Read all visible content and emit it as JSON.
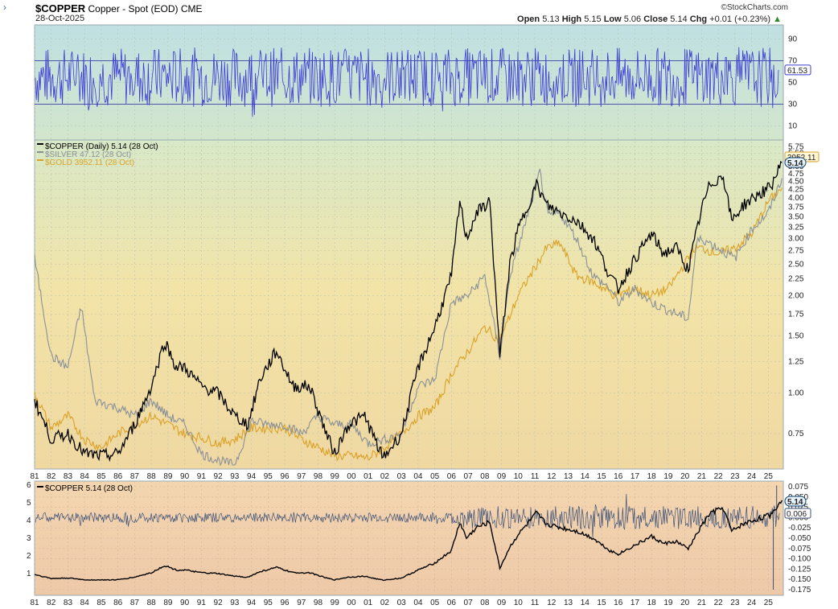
{
  "header": {
    "symbol": "$COPPER",
    "name": "Copper - Spot (EOD)",
    "exchange": "CME",
    "date": "28-Oct-2025",
    "brand": "©StockCharts.com",
    "ohlc": {
      "open_label": "Open",
      "open": "5.13",
      "high_label": "High",
      "high": "5.15",
      "low_label": "Low",
      "low": "5.06",
      "close_label": "Close",
      "close": "5.14",
      "chg_label": "Chg",
      "chg": "+0.01 (+0.23%)"
    },
    "up_arrow": "▲",
    "expander_icon": "›"
  },
  "colors": {
    "copper": "#000000",
    "silver": "#8a9098",
    "gold": "#d9a227",
    "rsi": "#3b3bd6",
    "roc": "#3c5078"
  },
  "chart_data": [
    {
      "type": "line",
      "panel": "rsi",
      "x_start": "1981",
      "x_end": "2025-10-28",
      "ylim": [
        0,
        100
      ],
      "yticks": [
        "90",
        "70",
        "50",
        "30",
        "10"
      ],
      "reference_lines": [
        70,
        30
      ],
      "last_value": "61.53",
      "series": [
        {
          "values_summary": "oscillates mostly between 25 and 80"
        }
      ]
    },
    {
      "type": "line",
      "panel": "price",
      "log_scale": true,
      "ylim": [
        0.6,
        5.8
      ],
      "yticks": [
        "5.75",
        "5.50",
        "5.25",
        "5.00",
        "4.75",
        "4.50",
        "4.25",
        "4.00",
        "3.75",
        "3.50",
        "3.25",
        "3.00",
        "2.75",
        "2.50",
        "2.25",
        "2.00",
        "1.75",
        "1.50",
        "1.25",
        "1.00",
        "0.75"
      ],
      "xticks": [
        "81",
        "82",
        "83",
        "84",
        "85",
        "86",
        "87",
        "88",
        "89",
        "90",
        "91",
        "92",
        "93",
        "94",
        "95",
        "96",
        "97",
        "98",
        "99",
        "00",
        "01",
        "02",
        "03",
        "04",
        "05",
        "06",
        "07",
        "08",
        "09",
        "10",
        "11",
        "12",
        "13",
        "14",
        "15",
        "16",
        "17",
        "18",
        "19",
        "20",
        "21",
        "22",
        "23",
        "24",
        "25"
      ],
      "legend": [
        {
          "label": "$COPPER (Daily) 5.14 (28 Oct)"
        },
        {
          "label": "$SILVER 47.12 (28 Oct)"
        },
        {
          "label": "$GOLD 3952.11 (28 Oct)"
        }
      ],
      "last_labels": [
        "3952.11",
        "5.14"
      ],
      "series": [
        {
          "name": "$COPPER",
          "x": [
            1981,
            1982,
            1983,
            1984,
            1985,
            1986,
            1987,
            1988,
            1988.8,
            1989.5,
            1990,
            1991,
            1992,
            1993,
            1993.8,
            1994.5,
            1995.5,
            1996.5,
            1997.5,
            1998.5,
            1999,
            1999.8,
            2000.8,
            2001.5,
            2001.9,
            2003,
            2004,
            2005,
            2006,
            2006.5,
            2006.9,
            2007.5,
            2008.3,
            2008.9,
            2009.5,
            2010,
            2011.1,
            2011.7,
            2012.5,
            2013.5,
            2014.5,
            2015.5,
            2016,
            2017,
            2018,
            2018.7,
            2019.5,
            2020.2,
            2021,
            2021.5,
            2022.3,
            2022.8,
            2023.5,
            2024.4,
            2025.1,
            2025.82
          ],
          "values": [
            0.95,
            0.72,
            0.75,
            0.65,
            0.64,
            0.65,
            0.8,
            1.05,
            1.45,
            1.2,
            1.2,
            1.05,
            1.0,
            0.85,
            0.8,
            1.1,
            1.35,
            1.05,
            1.05,
            0.75,
            0.65,
            0.8,
            0.85,
            0.7,
            0.63,
            0.75,
            1.2,
            1.6,
            2.3,
            3.9,
            3.0,
            3.6,
            3.9,
            1.3,
            2.5,
            3.2,
            4.4,
            3.8,
            3.6,
            3.4,
            3.0,
            2.3,
            2.1,
            2.6,
            3.1,
            2.7,
            2.8,
            2.4,
            3.7,
            4.4,
            4.7,
            3.4,
            3.8,
            4.1,
            4.3,
            5.14
          ]
        },
        {
          "name": "$SILVER",
          "x": [
            1981,
            1982,
            1983,
            1983.8,
            1984.6,
            1986,
            1987,
            1988,
            1989,
            1990,
            1991,
            1992,
            1993,
            1994,
            1995,
            1996,
            1997,
            1998,
            1999,
            2000,
            2001,
            2002,
            2003,
            2004,
            2005,
            2006,
            2007,
            2008,
            2008.9,
            2009.5,
            2010,
            2011.3,
            2011.8,
            2012.5,
            2013.5,
            2014.5,
            2015.5,
            2016,
            2017,
            2018,
            2019,
            2020.2,
            2020.7,
            2021,
            2022,
            2023,
            2024,
            2025,
            2025.82
          ],
          "values": [
            2.6,
            1.3,
            1.2,
            1.85,
            0.95,
            0.9,
            0.85,
            0.95,
            0.85,
            0.8,
            0.65,
            0.62,
            0.6,
            0.82,
            0.8,
            0.8,
            0.75,
            0.85,
            0.8,
            0.8,
            0.7,
            0.72,
            0.75,
            1.05,
            1.1,
            1.9,
            2.0,
            2.3,
            1.3,
            2.3,
            2.8,
            4.8,
            3.5,
            3.6,
            3.0,
            2.3,
            2.1,
            1.9,
            2.1,
            1.9,
            1.8,
            1.7,
            2.9,
            3.0,
            2.8,
            2.6,
            3.2,
            3.6,
            4.6
          ]
        },
        {
          "name": "$GOLD",
          "x": [
            1981,
            1982,
            1983,
            1984,
            1985,
            1986,
            1987,
            1988,
            1989,
            1990,
            1991,
            1992,
            1993,
            1994,
            1995,
            1996,
            1997,
            1998,
            1999,
            2000,
            2001,
            2002,
            2003,
            2004,
            2005,
            2006,
            2007,
            2008,
            2008.9,
            2010,
            2011.7,
            2012.5,
            2013.5,
            2014.5,
            2015.8,
            2017,
            2018,
            2019,
            2020.6,
            2021,
            2022,
            2023,
            2024,
            2025,
            2025.82
          ],
          "values": [
            1.0,
            0.78,
            0.85,
            0.72,
            0.68,
            0.75,
            0.8,
            0.85,
            0.8,
            0.75,
            0.73,
            0.7,
            0.72,
            0.78,
            0.78,
            0.78,
            0.72,
            0.68,
            0.64,
            0.64,
            0.63,
            0.68,
            0.75,
            0.85,
            0.9,
            1.15,
            1.35,
            1.6,
            1.45,
            2.0,
            2.8,
            2.9,
            2.3,
            2.2,
            2.0,
            2.1,
            2.0,
            2.1,
            2.8,
            2.8,
            2.7,
            2.8,
            3.1,
            3.9,
            4.3
          ]
        }
      ]
    },
    {
      "type": "line",
      "panel": "lower",
      "legend": [
        {
          "label": "$COPPER 5.14 (28 Oct)"
        }
      ],
      "left_ticks": [
        "6",
        "5",
        "4",
        "3",
        "2",
        "1"
      ],
      "right_ticks": [
        "0.075",
        "0.050",
        "0.025",
        "0.000",
        "-0.025",
        "-0.050",
        "-0.075",
        "-0.100",
        "-0.125",
        "-0.150",
        "-0.175"
      ],
      "last_labels": [
        "5.14",
        "0.006"
      ],
      "xticks": [
        "81",
        "82",
        "83",
        "84",
        "85",
        "86",
        "87",
        "88",
        "89",
        "90",
        "91",
        "92",
        "93",
        "94",
        "95",
        "96",
        "97",
        "98",
        "99",
        "00",
        "01",
        "02",
        "03",
        "04",
        "05",
        "06",
        "07",
        "08",
        "09",
        "10",
        "11",
        "12",
        "13",
        "14",
        "15",
        "16",
        "17",
        "18",
        "19",
        "20",
        "21",
        "22",
        "23",
        "24",
        "25"
      ],
      "series": [
        {
          "name": "$COPPER",
          "values_summary": "price on linear 0-6 scale"
        },
        {
          "values_summary": "daily change oscillating around 0.000, spikes to -0.175"
        }
      ]
    }
  ]
}
